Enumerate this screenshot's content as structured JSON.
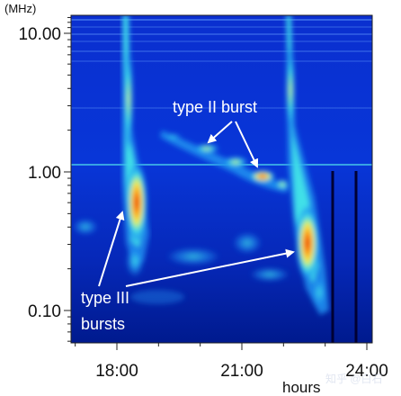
{
  "chart_data": {
    "type": "heatmap",
    "title": "",
    "xlabel": "hours",
    "ylabel": "(MHz)",
    "y_scale": "log",
    "y_range_mhz": [
      0.06,
      15
    ],
    "x_range_hours": [
      16.8,
      24.0
    ],
    "x_ticks": [
      {
        "value": 18,
        "label": "18:00"
      },
      {
        "value": 21,
        "label": "21:00"
      },
      {
        "value": 24,
        "label": "24:00"
      }
    ],
    "y_ticks": [
      {
        "value": 10,
        "label": "10.00"
      },
      {
        "value": 1,
        "label": "1.00"
      },
      {
        "value": 0.1,
        "label": "0.10"
      }
    ],
    "annotations": [
      {
        "text": "type II burst"
      },
      {
        "text_lines": [
          "type III",
          "bursts"
        ]
      }
    ],
    "colormap": [
      "#00007a",
      "#0a2bd6",
      "#1e8ff0",
      "#3fe0e8",
      "#f0f050",
      "#ff9a10",
      "#e01010"
    ],
    "events": [
      {
        "kind": "type III",
        "time_hours": 18.0,
        "freq_start_mhz": 14,
        "freq_end_mhz": 0.2
      },
      {
        "kind": "type III",
        "time_hours": 22.1,
        "freq_start_mhz": 14,
        "freq_end_mhz": 0.08
      },
      {
        "kind": "type II",
        "time_start_hours": 19.3,
        "time_end_hours": 21.9,
        "freq_start_mhz": 1.8,
        "freq_end_mhz": 0.9
      }
    ]
  },
  "watermark": "知乎 @白石"
}
